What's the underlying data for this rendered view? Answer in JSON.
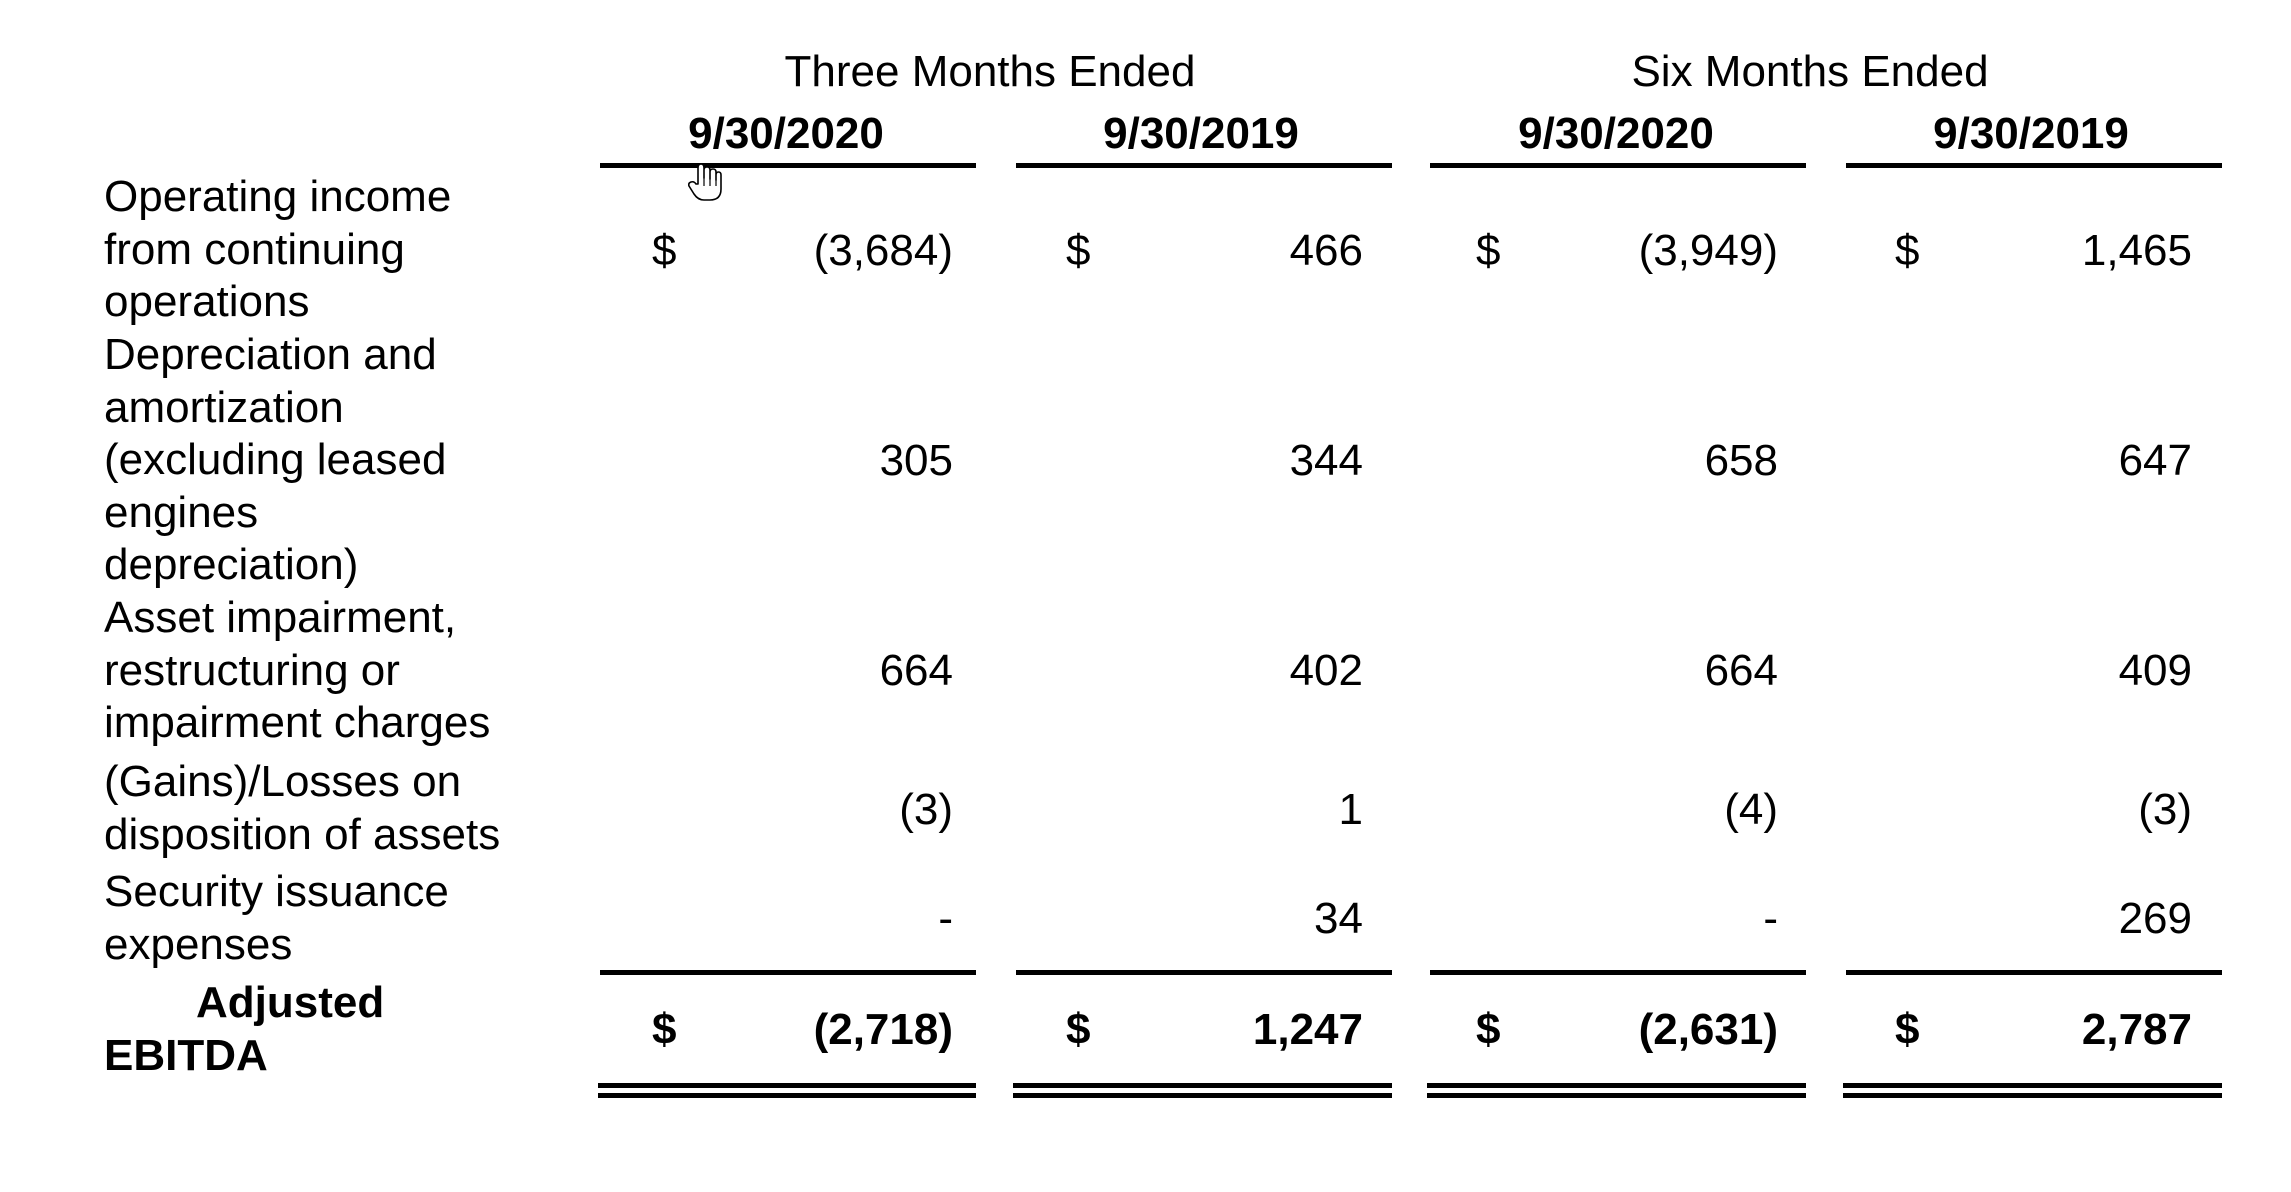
{
  "header": {
    "group_three_months": "Three Months Ended",
    "group_six_months": "Six Months Ended",
    "columns": [
      "9/30/2020",
      "9/30/2019",
      "9/30/2020",
      "9/30/2019"
    ]
  },
  "currency_symbol": "$",
  "rows": [
    {
      "label": "Operating income from continuing operations",
      "values": [
        "(3,684)",
        "466",
        "(3,949)",
        "1,465"
      ]
    },
    {
      "label": "Depreciation and amortization (excluding leased engines depreciation)",
      "values": [
        "305",
        "344",
        "658",
        "647"
      ]
    },
    {
      "label": "Asset impairment, restructuring or impairment charges",
      "values": [
        "664",
        "402",
        "664",
        "409"
      ]
    },
    {
      "label": "(Gains)/Losses on disposition of assets",
      "values": [
        "(3)",
        "1",
        "(4)",
        "(3)"
      ]
    },
    {
      "label": "Security issuance expenses",
      "values": [
        "-",
        "34",
        "-",
        "269"
      ]
    }
  ],
  "total": {
    "label_line1": "Adjusted",
    "label_line2": "EBITDA",
    "values": [
      "(2,718)",
      "1,247",
      "(2,631)",
      "2,787"
    ]
  },
  "icons": {
    "cursor": "hand-pointer-icon"
  }
}
